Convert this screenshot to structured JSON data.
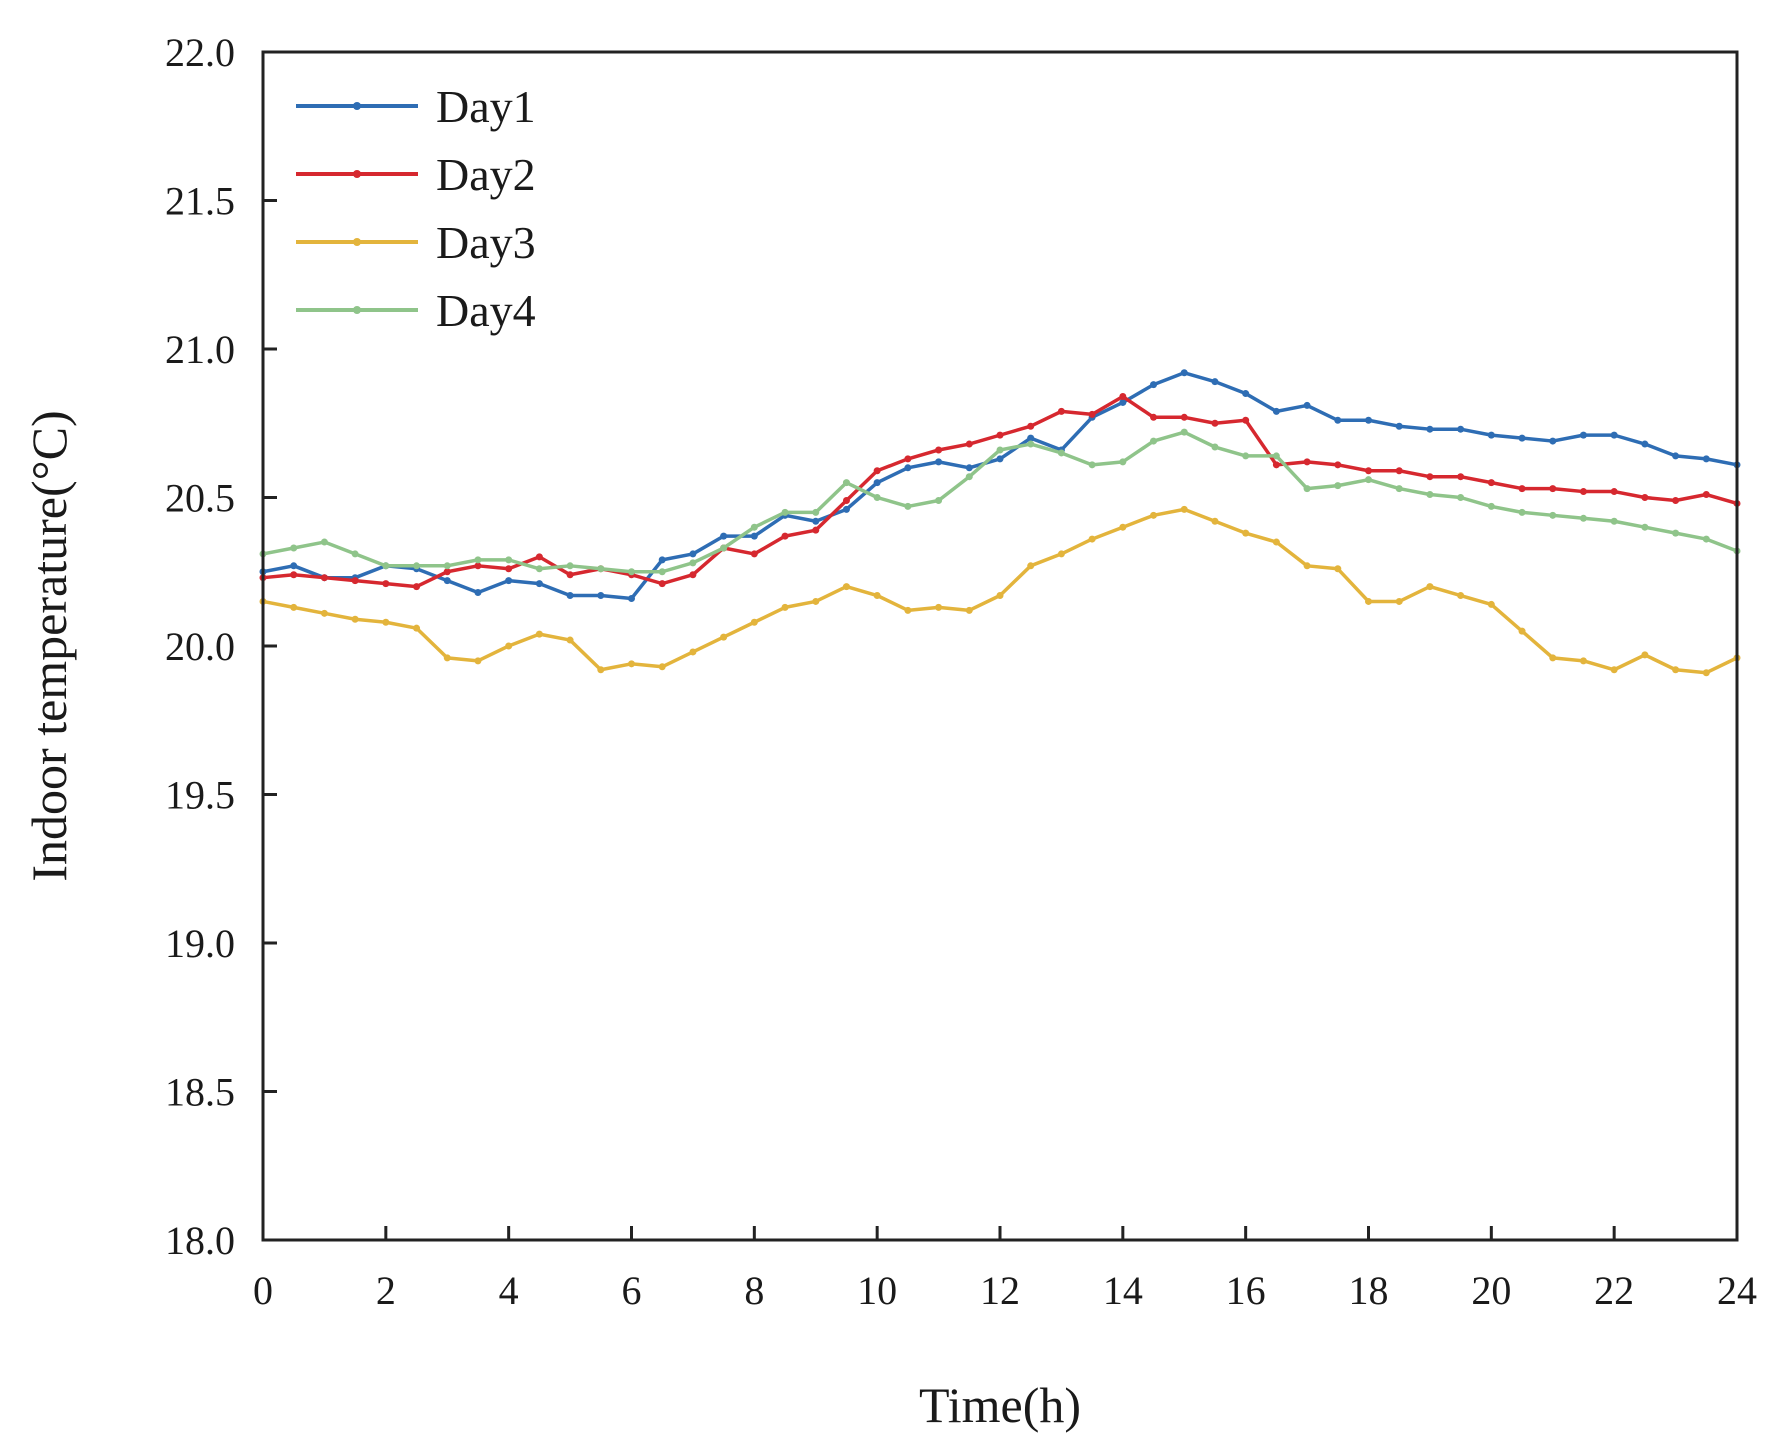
{
  "chart_data": {
    "type": "line",
    "title": "",
    "xlabel": "Time(h)",
    "ylabel": "Indoor temperature(°C)",
    "xlim": [
      0,
      24
    ],
    "ylim": [
      18.0,
      22.0
    ],
    "xticks": [
      0,
      2,
      4,
      6,
      8,
      10,
      12,
      14,
      16,
      18,
      20,
      22,
      24
    ],
    "yticks": [
      18.0,
      18.5,
      19.0,
      19.5,
      20.0,
      20.5,
      21.0,
      21.5,
      22.0
    ],
    "xtick_labels": [
      "0",
      "2",
      "4",
      "6",
      "8",
      "10",
      "12",
      "14",
      "16",
      "18",
      "20",
      "22",
      "24"
    ],
    "ytick_labels": [
      "18.0",
      "18.5",
      "19.0",
      "19.5",
      "20.0",
      "20.5",
      "21.0",
      "21.5",
      "22.0"
    ],
    "grid": false,
    "legend_position": "top-left",
    "x": [
      0,
      0.5,
      1,
      1.5,
      2,
      2.5,
      3,
      3.5,
      4,
      4.5,
      5,
      5.5,
      6,
      6.5,
      7,
      7.5,
      8,
      8.5,
      9,
      9.5,
      10,
      10.5,
      11,
      11.5,
      12,
      12.5,
      13,
      13.5,
      14,
      14.5,
      15,
      15.5,
      16,
      16.5,
      17,
      17.5,
      18,
      18.5,
      19,
      19.5,
      20,
      20.5,
      21,
      21.5,
      22,
      22.5,
      23,
      23.5,
      24
    ],
    "series": [
      {
        "name": "Day1",
        "color": "#2e6db4",
        "values": [
          20.25,
          20.27,
          20.23,
          20.23,
          20.27,
          20.26,
          20.22,
          20.18,
          20.22,
          20.21,
          20.17,
          20.17,
          20.16,
          20.29,
          20.31,
          20.37,
          20.37,
          20.44,
          20.42,
          20.46,
          20.55,
          20.6,
          20.62,
          20.6,
          20.63,
          20.7,
          20.66,
          20.77,
          20.82,
          20.88,
          20.92,
          20.89,
          20.85,
          20.79,
          20.81,
          20.76,
          20.76,
          20.74,
          20.73,
          20.73,
          20.71,
          20.7,
          20.69,
          20.71,
          20.71,
          20.68,
          20.64,
          20.63,
          20.61
        ]
      },
      {
        "name": "Day2",
        "color": "#d6282f",
        "values": [
          20.23,
          20.24,
          20.23,
          20.22,
          20.21,
          20.2,
          20.25,
          20.27,
          20.26,
          20.3,
          20.24,
          20.26,
          20.24,
          20.21,
          20.24,
          20.33,
          20.31,
          20.37,
          20.39,
          20.49,
          20.59,
          20.63,
          20.66,
          20.68,
          20.71,
          20.74,
          20.79,
          20.78,
          20.84,
          20.77,
          20.77,
          20.75,
          20.76,
          20.61,
          20.62,
          20.61,
          20.59,
          20.59,
          20.57,
          20.57,
          20.55,
          20.53,
          20.53,
          20.52,
          20.52,
          20.5,
          20.49,
          20.51,
          20.48
        ]
      },
      {
        "name": "Day3",
        "color": "#e3b43c",
        "values": [
          20.15,
          20.13,
          20.11,
          20.09,
          20.08,
          20.06,
          19.96,
          19.95,
          20.0,
          20.04,
          20.02,
          19.92,
          19.94,
          19.93,
          19.98,
          20.03,
          20.08,
          20.13,
          20.15,
          20.2,
          20.17,
          20.12,
          20.13,
          20.12,
          20.17,
          20.27,
          20.31,
          20.36,
          20.4,
          20.44,
          20.46,
          20.42,
          20.38,
          20.35,
          20.27,
          20.26,
          20.15,
          20.15,
          20.2,
          20.17,
          20.14,
          20.05,
          19.96,
          19.95,
          19.92,
          19.97,
          19.92,
          19.91,
          19.96
        ]
      },
      {
        "name": "Day4",
        "color": "#8fc48a",
        "values": [
          20.31,
          20.33,
          20.35,
          20.31,
          20.27,
          20.27,
          20.27,
          20.29,
          20.29,
          20.26,
          20.27,
          20.26,
          20.25,
          20.25,
          20.28,
          20.33,
          20.4,
          20.45,
          20.45,
          20.55,
          20.5,
          20.47,
          20.49,
          20.57,
          20.66,
          20.68,
          20.65,
          20.61,
          20.62,
          20.69,
          20.72,
          20.67,
          20.64,
          20.64,
          20.53,
          20.54,
          20.56,
          20.53,
          20.51,
          20.5,
          20.47,
          20.45,
          20.44,
          20.43,
          20.42,
          20.4,
          20.38,
          20.36,
          20.32
        ]
      }
    ]
  }
}
